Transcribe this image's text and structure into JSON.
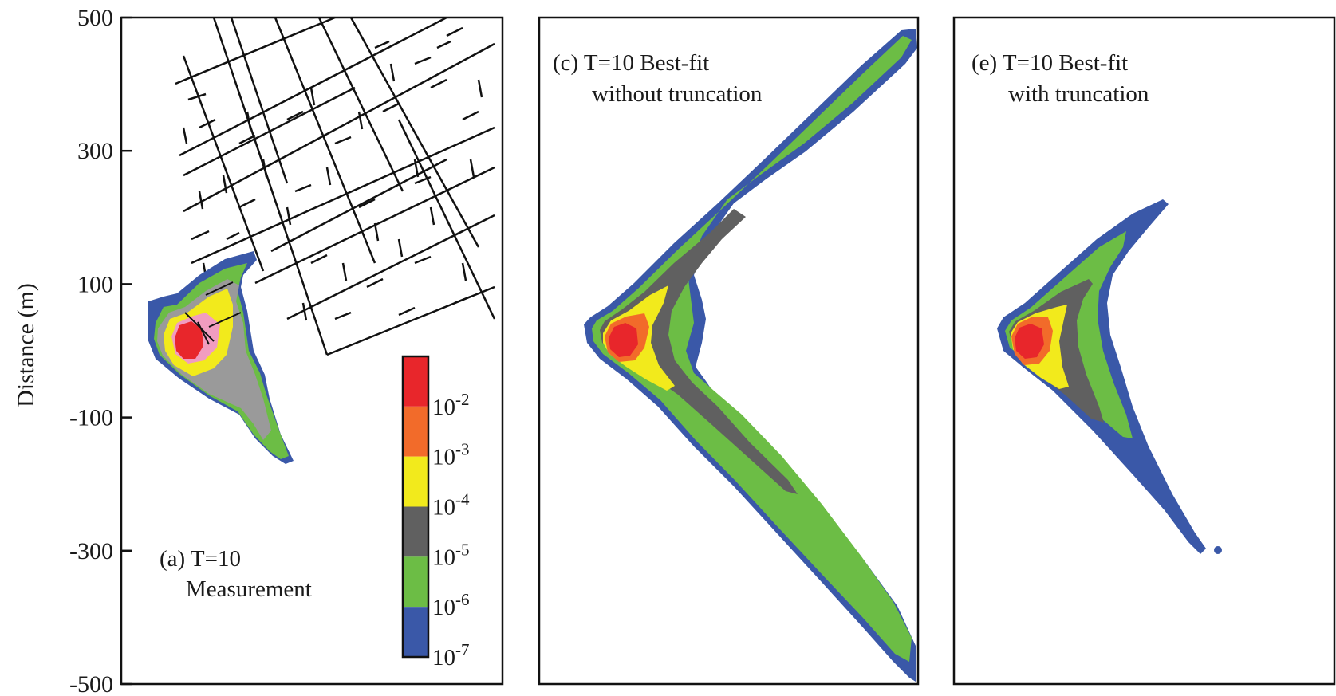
{
  "chart_data": {
    "type": "heatmap",
    "ylabel": "Distance (m)",
    "ylim": [
      -500,
      500
    ],
    "yticks": [
      "500",
      "300",
      "100",
      "-100",
      "-300",
      "-500"
    ],
    "ytick_values": [
      500,
      300,
      100,
      -100,
      -300,
      -500
    ],
    "colorbar": {
      "levels": [
        "10",
        "10",
        "10",
        "10",
        "10",
        "10"
      ],
      "exponents": [
        "-2",
        "-3",
        "-4",
        "-5",
        "-6",
        "-7"
      ],
      "colors": [
        "#e8262b",
        "#f26b2a",
        "#f2ea1c",
        "#606060",
        "#6cbd45",
        "#3a58a8"
      ]
    },
    "panels": [
      {
        "label_line1": "(a) T=10",
        "label_line2": "Measurement"
      },
      {
        "label_line1": "(c) T=10 Best-fit",
        "label_line2": "without truncation"
      },
      {
        "label_line1": "(e) T=10 Best-fit",
        "label_line2": "with truncation"
      }
    ]
  }
}
